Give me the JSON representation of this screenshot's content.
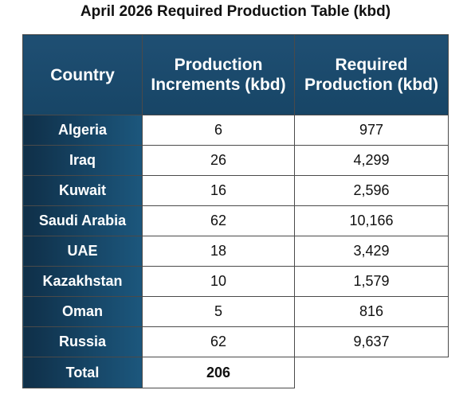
{
  "title": "April 2026 Required Production Table (kbd)",
  "chart_data": {
    "type": "table",
    "title": "April 2026 Required Production Table (kbd)",
    "columns": [
      "Country",
      "Production Increments (kbd)",
      "Required Production (kbd)"
    ],
    "rows": [
      {
        "country": "Algeria",
        "increment": "6",
        "required": "977"
      },
      {
        "country": "Iraq",
        "increment": "26",
        "required": "4,299"
      },
      {
        "country": "Kuwait",
        "increment": "16",
        "required": "2,596"
      },
      {
        "country": "Saudi Arabia",
        "increment": "62",
        "required": "10,166"
      },
      {
        "country": "UAE",
        "increment": "18",
        "required": "3,429"
      },
      {
        "country": "Kazakhstan",
        "increment": "10",
        "required": "1,579"
      },
      {
        "country": "Oman",
        "increment": "5",
        "required": "816"
      },
      {
        "country": "Russia",
        "increment": "62",
        "required": "9,637"
      }
    ],
    "total": {
      "label": "Total",
      "increment": "206",
      "required": ""
    }
  },
  "colors": {
    "header_bg": "#1f4f73",
    "country_bg_dark": "#0f2f48",
    "country_bg_light": "#1c577d",
    "border": "#4a4a4a"
  }
}
